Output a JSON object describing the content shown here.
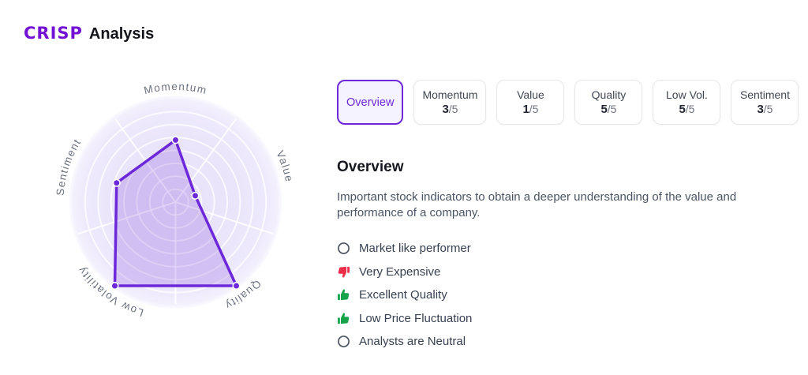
{
  "header": {
    "brand": "CRISP",
    "title": "Analysis"
  },
  "tabs": [
    {
      "id": "overview",
      "label": "Overview",
      "active": true
    },
    {
      "id": "momentum",
      "label": "Momentum",
      "score": "3",
      "max": "/5"
    },
    {
      "id": "value",
      "label": "Value",
      "score": "1",
      "max": "/5"
    },
    {
      "id": "quality",
      "label": "Quality",
      "score": "5",
      "max": "/5"
    },
    {
      "id": "low-vol",
      "label": "Low Vol.",
      "score": "5",
      "max": "/5"
    },
    {
      "id": "sentiment",
      "label": "Sentiment",
      "score": "3",
      "max": "/5"
    }
  ],
  "overview": {
    "heading": "Overview",
    "description": "Important stock indicators to obtain a deeper understanding of the value and performance of a company.",
    "items": [
      {
        "icon": "neutral-circle-icon",
        "label": "Market like performer"
      },
      {
        "icon": "thumbs-down-icon",
        "label": "Very Expensive"
      },
      {
        "icon": "thumbs-up-icon",
        "label": "Excellent Quality"
      },
      {
        "icon": "thumbs-up-icon",
        "label": "Low Price Fluctuation"
      },
      {
        "icon": "neutral-circle-icon",
        "label": "Analysts are Neutral"
      }
    ]
  },
  "chart_data": {
    "type": "radar",
    "categories": [
      "Momentum",
      "Value",
      "Quality",
      "Low Volatility",
      "Sentiment"
    ],
    "values": [
      3,
      1,
      5,
      5,
      3
    ],
    "scale": {
      "min": 0,
      "max": 5,
      "grid_rings": 8
    },
    "start_angle_deg": -90,
    "direction": "clockwise",
    "grid": "circular",
    "legend": false,
    "tick_labels": false
  },
  "colors": {
    "accent": "#6d28d9",
    "accent_bright": "#7311d4",
    "radar_stroke": "#6d28d9",
    "radar_fill": "rgba(109,40,217,0.20)",
    "radar_disc": "#e9e4f9",
    "grid_line": "rgba(255,255,255,0.75)",
    "axis_label": "#6b7280",
    "tab_active_bg": "#f5f3ff",
    "thumbs_up_green": "#16a34a",
    "thumbs_down_red": "#ee2d49"
  }
}
